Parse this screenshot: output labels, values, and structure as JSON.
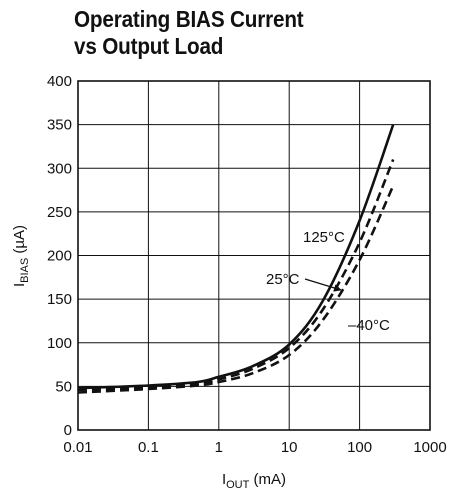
{
  "chart_data": {
    "type": "line",
    "title": [
      "Operating BIAS Current",
      "vs Output Load"
    ],
    "xlabel": {
      "main": "I",
      "sub": "OUT",
      "unit": " (mA)"
    },
    "ylabel": {
      "main": "I",
      "sub": "BIAS",
      "unit": " (µA)"
    },
    "xscale": "log",
    "xlim": [
      0.01,
      1000
    ],
    "ylim": [
      0,
      400
    ],
    "x_ticks": [
      "0.01",
      "0.1",
      "1",
      "10",
      "100",
      "1000"
    ],
    "y_ticks": [
      "0",
      "50",
      "100",
      "150",
      "200",
      "250",
      "300",
      "350",
      "400"
    ],
    "grid": true,
    "series": [
      {
        "name": "125°C",
        "style": "solid",
        "x": [
          0.01,
          0.1,
          0.5,
          1,
          3,
          10,
          30,
          100,
          300
        ],
        "y": [
          48,
          51,
          55,
          61,
          73,
          98,
          148,
          240,
          350
        ]
      },
      {
        "name": "25°C",
        "style": "dashed",
        "x": [
          0.01,
          0.1,
          0.5,
          1,
          3,
          10,
          30,
          100,
          300
        ],
        "y": [
          46,
          49,
          53,
          58,
          70,
          94,
          138,
          215,
          310
        ]
      },
      {
        "name": "–40°C",
        "style": "dashed",
        "x": [
          0.01,
          0.1,
          0.5,
          1,
          3,
          10,
          30,
          100,
          300
        ],
        "y": [
          43,
          47,
          51,
          55,
          65,
          86,
          126,
          195,
          280
        ]
      }
    ]
  }
}
